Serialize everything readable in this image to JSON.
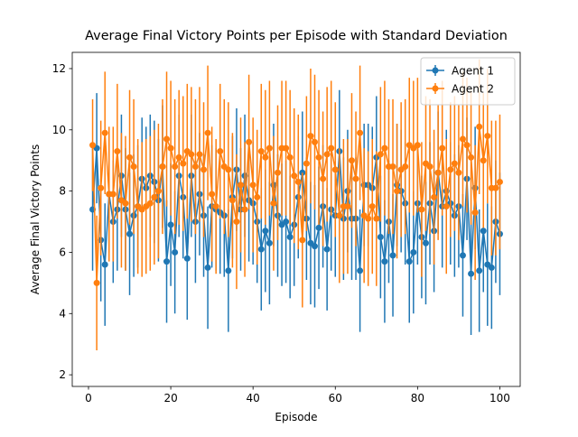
{
  "chart_data": {
    "type": "errorbar",
    "title": "Average Final Victory Points per Episode with Standard Deviation",
    "xlabel": "Episode",
    "ylabel": "Average Final Victory Points",
    "x": [
      1,
      2,
      3,
      4,
      5,
      6,
      7,
      8,
      9,
      10,
      11,
      12,
      13,
      14,
      15,
      16,
      17,
      18,
      19,
      20,
      21,
      22,
      23,
      24,
      25,
      26,
      27,
      28,
      29,
      30,
      31,
      32,
      33,
      34,
      35,
      36,
      37,
      38,
      39,
      40,
      41,
      42,
      43,
      44,
      45,
      46,
      47,
      48,
      49,
      50,
      51,
      52,
      53,
      54,
      55,
      56,
      57,
      58,
      59,
      60,
      61,
      62,
      63,
      64,
      65,
      66,
      67,
      68,
      69,
      70,
      71,
      72,
      73,
      74,
      75,
      76,
      77,
      78,
      79,
      80,
      81,
      82,
      83,
      84,
      85,
      86,
      87,
      88,
      89,
      90,
      91,
      92,
      93,
      94,
      95,
      96,
      97,
      98,
      99,
      100
    ],
    "series": [
      {
        "name": "Agent 1",
        "color": "#1f77b4",
        "values": [
          7.4,
          9.4,
          6.4,
          5.6,
          7.9,
          7.0,
          7.4,
          8.5,
          7.4,
          6.6,
          7.2,
          7.5,
          8.4,
          8.1,
          8.5,
          8.3,
          7.7,
          8.8,
          5.7,
          6.9,
          6.0,
          8.5,
          7.8,
          5.8,
          8.5,
          7.0,
          7.9,
          7.2,
          5.5,
          7.5,
          7.4,
          7.3,
          7.2,
          5.4,
          7.8,
          8.7,
          7.4,
          8.5,
          7.7,
          7.6,
          7.0,
          6.1,
          6.7,
          6.3,
          8.2,
          7.2,
          6.9,
          7.0,
          6.5,
          6.9,
          7.8,
          8.6,
          7.1,
          6.3,
          6.2,
          6.8,
          7.5,
          6.1,
          7.4,
          7.2,
          9.3,
          7.1,
          8.0,
          7.1,
          7.1,
          5.4,
          8.2,
          8.2,
          8.1,
          9.1,
          6.5,
          5.7,
          7.0,
          5.9,
          8.2,
          8.0,
          7.6,
          5.7,
          6.0,
          7.6,
          6.5,
          6.3,
          7.6,
          6.7,
          8.6,
          7.5,
          8.0,
          7.6,
          7.2,
          7.5,
          5.9,
          8.4,
          5.3,
          8.1,
          5.4,
          6.7,
          5.6,
          5.5,
          7.0,
          6.6
        ],
        "errors": [
          2.0,
          1.8,
          2.0,
          2.0,
          1.9,
          2.0,
          2.0,
          2.0,
          2.0,
          2.0,
          2.0,
          2.0,
          2.0,
          2.0,
          2.0,
          2.0,
          2.0,
          2.0,
          2.0,
          2.0,
          2.0,
          2.0,
          2.0,
          2.0,
          2.0,
          2.0,
          2.0,
          2.0,
          2.0,
          2.0,
          2.0,
          2.0,
          2.0,
          2.0,
          2.0,
          2.0,
          2.0,
          2.0,
          2.0,
          2.0,
          2.0,
          2.0,
          2.0,
          2.0,
          2.0,
          2.0,
          2.0,
          2.0,
          2.0,
          2.0,
          2.0,
          2.0,
          2.0,
          2.0,
          2.0,
          2.0,
          2.0,
          2.0,
          2.0,
          2.0,
          2.0,
          2.0,
          2.0,
          2.0,
          2.0,
          2.0,
          2.0,
          2.0,
          2.0,
          2.0,
          2.0,
          2.0,
          2.0,
          2.0,
          2.0,
          2.0,
          2.0,
          2.0,
          2.0,
          2.0,
          2.0,
          2.0,
          2.0,
          2.0,
          2.0,
          2.0,
          2.0,
          2.0,
          2.0,
          2.0,
          2.0,
          2.0,
          2.0,
          2.0,
          2.0,
          2.0,
          2.0,
          2.0,
          2.0,
          2.0
        ]
      },
      {
        "name": "Agent 2",
        "color": "#ff7f0e",
        "values": [
          9.5,
          5.0,
          8.1,
          9.9,
          7.9,
          7.9,
          9.3,
          7.7,
          7.6,
          9.1,
          8.8,
          7.5,
          7.4,
          7.5,
          7.6,
          7.8,
          8.0,
          8.8,
          9.7,
          9.4,
          8.8,
          9.1,
          8.9,
          9.3,
          9.2,
          8.8,
          9.2,
          8.7,
          9.9,
          7.9,
          7.5,
          9.3,
          8.8,
          8.7,
          7.7,
          7.0,
          8.2,
          7.4,
          9.6,
          8.2,
          7.8,
          9.3,
          9.1,
          9.4,
          7.6,
          8.6,
          9.4,
          9.4,
          9.1,
          8.5,
          8.3,
          6.4,
          8.9,
          9.8,
          9.6,
          9.1,
          8.4,
          9.2,
          9.4,
          8.7,
          7.2,
          7.5,
          7.5,
          9.0,
          8.4,
          9.9,
          7.2,
          7.1,
          7.5,
          7.1,
          9.2,
          9.4,
          8.8,
          8.8,
          8.0,
          8.7,
          8.8,
          9.5,
          9.4,
          9.5,
          7.4,
          8.9,
          8.8,
          7.8,
          8.6,
          9.4,
          7.5,
          8.7,
          8.9,
          8.6,
          9.7,
          9.5,
          9.1,
          7.3,
          10.1,
          9.0,
          9.8,
          8.1,
          8.1,
          8.3
        ],
        "errors": [
          1.5,
          2.2,
          2.2,
          2.0,
          2.2,
          2.2,
          2.2,
          2.2,
          2.2,
          2.2,
          2.2,
          2.2,
          2.2,
          2.2,
          2.2,
          2.2,
          2.2,
          2.2,
          2.2,
          2.2,
          2.2,
          2.2,
          2.2,
          2.2,
          2.2,
          2.2,
          2.2,
          2.2,
          2.2,
          2.2,
          2.2,
          2.2,
          2.2,
          2.2,
          2.2,
          2.2,
          2.2,
          2.2,
          2.2,
          2.2,
          2.2,
          2.2,
          2.2,
          2.2,
          2.2,
          2.2,
          2.2,
          2.2,
          2.2,
          2.2,
          2.2,
          2.2,
          2.2,
          2.2,
          2.2,
          2.2,
          2.2,
          2.2,
          2.2,
          2.2,
          2.2,
          2.2,
          2.2,
          2.2,
          2.2,
          2.2,
          2.2,
          2.2,
          2.2,
          2.2,
          2.2,
          2.2,
          2.2,
          2.2,
          2.2,
          2.2,
          2.2,
          2.2,
          2.2,
          2.2,
          2.2,
          2.2,
          2.2,
          2.2,
          2.2,
          2.2,
          2.2,
          2.2,
          2.2,
          2.2,
          2.2,
          2.2,
          2.2,
          2.2,
          2.2,
          2.2,
          2.2,
          2.2,
          2.2,
          2.2
        ]
      }
    ],
    "xlim": [
      -3.95,
      104.95
    ],
    "ylim": [
      1.62,
      12.53
    ],
    "xticks": [
      0,
      20,
      40,
      60,
      80,
      100
    ],
    "yticks": [
      2,
      4,
      6,
      8,
      10,
      12
    ],
    "legend": "upper right"
  }
}
